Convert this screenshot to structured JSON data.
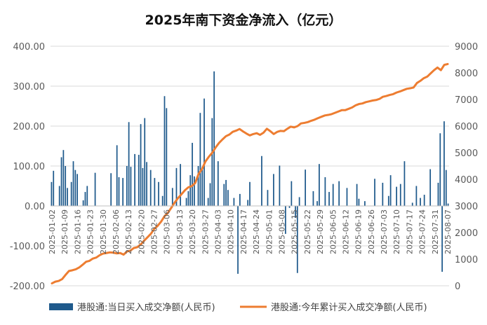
{
  "chart_data": {
    "type": "bar",
    "title": "2025年南下资金净流入（亿元）",
    "xlabel": "",
    "ylabel": "",
    "y_left": {
      "min": -200,
      "max": 400,
      "step": 100,
      "tick_labels": [
        "-200.00",
        "-100.00",
        "0.00",
        "100.00",
        "200.00",
        "300.00",
        "400.00"
      ]
    },
    "y_right": {
      "min": 0,
      "max": 9000,
      "step": 1000,
      "tick_labels": [
        "0",
        "1000",
        "2000",
        "3000",
        "4000",
        "5000",
        "6000",
        "7000",
        "8000",
        "9000"
      ]
    },
    "x_tick_labels": [
      "2025-01-02",
      "2025-01-09",
      "2025-01-16",
      "2025-01-23",
      "2025-01-30",
      "2025-02-06",
      "2025-02-13",
      "2025-02-20",
      "2025-02-27",
      "2025-03-06",
      "2025-03-13",
      "2025-03-20",
      "2025-03-27",
      "2025-04-03",
      "2025-04-10",
      "2025-04-17",
      "2025-04-24",
      "2025-05-01",
      "2025-05-08",
      "2025-05-15",
      "2025-05-22",
      "2025-05-29",
      "2025-06-05",
      "2025-06-12",
      "2025-06-19",
      "2025-06-26",
      "2025-07-03",
      "2025-07-10",
      "2025-07-17",
      "2025-07-24",
      "2025-07-31",
      "2025-08-07"
    ],
    "grid": "horizontal",
    "legend_position": "bottom",
    "series": [
      {
        "name": "港股通:当日买入成交净额(人民币)",
        "type": "bar",
        "axis": "left",
        "color": "#1f5a8c",
        "values": [
          60,
          88,
          0,
          0,
          50,
          122,
          140,
          100,
          45,
          0,
          60,
          112,
          90,
          80,
          0,
          0,
          14,
          35,
          50,
          0,
          0,
          0,
          83,
          0,
          0,
          0,
          0,
          0,
          0,
          0,
          82,
          0,
          0,
          152,
          72,
          0,
          70,
          0,
          100,
          210,
          98,
          0,
          130,
          0,
          128,
          205,
          95,
          220,
          110,
          0,
          90,
          0,
          70,
          0,
          60,
          0,
          25,
          275,
          245,
          0,
          0,
          45,
          0,
          95,
          0,
          105,
          0,
          0,
          20,
          37,
          77,
          158,
          74,
          0,
          100,
          233,
          98,
          269,
          0,
          20,
          57,
          220,
          337,
          0,
          112,
          0,
          0,
          55,
          65,
          40,
          0,
          0,
          20,
          0,
          -170,
          30,
          0,
          0,
          0,
          15,
          60,
          0,
          0,
          0,
          0,
          0,
          125,
          0,
          0,
          40,
          0,
          0,
          80,
          0,
          0,
          101,
          0,
          0,
          -70,
          0,
          -5,
          62,
          0,
          -30,
          -168,
          22,
          0,
          0,
          91,
          0,
          0,
          0,
          37,
          0,
          12,
          105,
          0,
          0,
          72,
          0,
          35,
          0,
          55,
          0,
          0,
          62,
          0,
          0,
          0,
          45,
          0,
          0,
          0,
          0,
          55,
          18,
          0,
          0,
          12,
          0,
          0,
          0,
          0,
          68,
          0,
          0,
          0,
          58,
          0,
          0,
          25,
          77,
          0,
          0,
          48,
          0,
          55,
          0,
          112,
          0,
          0,
          0,
          8,
          0,
          50,
          0,
          20,
          0,
          28,
          0,
          0,
          92,
          0,
          0,
          0,
          58,
          182,
          -165,
          212,
          90,
          6
        ]
      },
      {
        "name": "港股通:今年累计买入成交净额(人民币)",
        "type": "line",
        "axis": "right",
        "color": "#ed7d31",
        "values": [
          90,
          155,
          183,
          251,
          410,
          556,
          583,
          620,
          688,
          790,
          903,
          937,
          1023,
          1061,
          1150,
          1209,
          1230,
          1255,
          1243,
          1218,
          1229,
          1171,
          1290,
          1320,
          1418,
          1450,
          1550,
          1692,
          1821,
          1953,
          2139,
          2254,
          2409,
          2613,
          2741,
          2934,
          3131,
          3301,
          3444,
          3593,
          3700,
          3747,
          3863,
          4206,
          4388,
          4670,
          4850,
          5000,
          5200,
          5370,
          5500,
          5620,
          5681,
          5784,
          5830,
          5890,
          5800,
          5720,
          5650,
          5700,
          5733,
          5670,
          5750,
          5900,
          5810,
          5700,
          5780,
          5820,
          5810,
          5900,
          5979,
          5950,
          6000,
          6100,
          6120,
          6150,
          6200,
          6243,
          6300,
          6350,
          6400,
          6420,
          6450,
          6500,
          6550,
          6600,
          6600,
          6650,
          6700,
          6780,
          6828,
          6850,
          6900,
          6930,
          6960,
          6980,
          7020,
          7100,
          7130,
          7170,
          7200,
          7260,
          7300,
          7350,
          7400,
          7420,
          7450,
          7620,
          7700,
          7800,
          7858,
          7980,
          8100,
          8200,
          8100,
          8300,
          8330
        ]
      }
    ]
  }
}
